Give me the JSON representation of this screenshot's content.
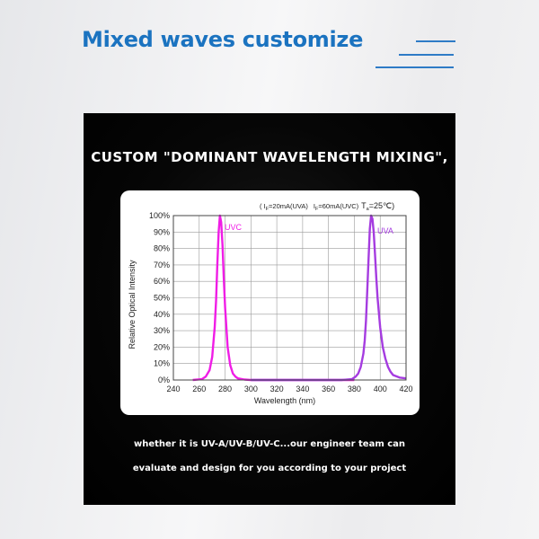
{
  "page": {
    "title": "Mixed waves customize",
    "headline": "CUSTOM \"DOMINANT WAVELENGTH MIXING\",",
    "caption_line1": "whether it is UV-A/UV-B/UV-C...our engineer team can",
    "caption_line2": "evaluate and design for you according to your project"
  },
  "colors": {
    "title": "#1b73c0",
    "accent_lines": "#2e7bc6",
    "uvc_curve": "#f01de6",
    "uva_curve": "#a53ce0"
  },
  "chart_data": {
    "type": "line",
    "xlabel": "Wavelength (nm)",
    "ylabel": "Relative Optical Intensity",
    "xlim": [
      240,
      420
    ],
    "ylim": [
      0,
      100
    ],
    "x_ticks": [
      "240",
      "260",
      "280",
      "300",
      "320",
      "340",
      "360",
      "380",
      "400",
      "420"
    ],
    "y_ticks": [
      "0%",
      "10%",
      "20%",
      "30%",
      "40%",
      "50%",
      "60%",
      "70%",
      "80%",
      "90%",
      "100%"
    ],
    "grid": true,
    "conditions": {
      "if_uva": "( I",
      "if_uva_sub": "F",
      "if_uva_rest": "=20mA(UVA)",
      "if_uvc": "I",
      "if_uvc_sub": "F",
      "if_uvc_rest": "=60mA(UVC)",
      "ta": "T",
      "ta_sub": "a",
      "ta_rest": "=25℃)"
    },
    "series": [
      {
        "name": "UVC",
        "color": "#f01de6",
        "x": [
          255,
          262,
          265,
          268,
          270,
          272,
          273,
          274,
          275,
          276,
          277,
          278,
          279,
          280,
          282,
          284,
          286,
          288,
          290,
          295,
          300,
          340,
          380
        ],
        "y": [
          0,
          0.5,
          2,
          6,
          14,
          32,
          48,
          70,
          90,
          100,
          96,
          82,
          62,
          44,
          20,
          9,
          4,
          2,
          1,
          0.3,
          0,
          0,
          0
        ]
      },
      {
        "name": "UVA",
        "color": "#a53ce0",
        "x": [
          300,
          370,
          378,
          381,
          383,
          385,
          387,
          388,
          389,
          390,
          391,
          392,
          393,
          394,
          395,
          396,
          397,
          398,
          400,
          402,
          404,
          406,
          408,
          410,
          415,
          420
        ],
        "y": [
          0,
          0,
          0.5,
          2,
          4,
          8,
          16,
          24,
          36,
          54,
          74,
          92,
          100,
          98,
          90,
          76,
          62,
          50,
          32,
          20,
          13,
          8,
          5,
          3,
          1.5,
          1
        ]
      }
    ]
  }
}
